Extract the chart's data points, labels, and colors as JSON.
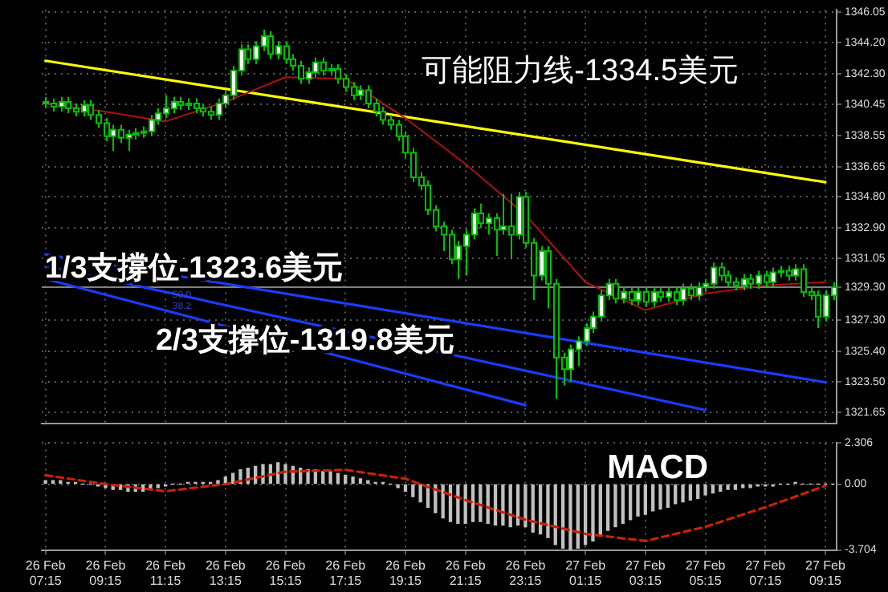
{
  "chart_data": [
    {
      "type": "candlestick",
      "annotations": [
        "可能阻力线-1334.5美元",
        "1/3支撐位-1323.6美元",
        "2/3支撐位-1319.8美元",
        "50.0",
        "38.2"
      ],
      "categories": [
        "26 Feb 07:15",
        null,
        null,
        null,
        null,
        null,
        null,
        null,
        "26 Feb 09:15",
        null,
        null,
        null,
        null,
        null,
        null,
        null,
        "26 Feb 11:15",
        null,
        null,
        null,
        null,
        null,
        null,
        null,
        "26 Feb 13:15",
        null,
        null,
        null,
        null,
        null,
        null,
        null,
        "26 Feb 15:15",
        null,
        null,
        null,
        null,
        null,
        null,
        null,
        "26 Feb 17:15",
        null,
        null,
        null,
        null,
        null,
        null,
        null,
        "26 Feb 19:15",
        null,
        null,
        null,
        null,
        null,
        null,
        null,
        "26 Feb 21:15",
        null,
        null,
        null,
        null,
        null,
        null,
        null,
        "26 Feb 23:15",
        null,
        null,
        null,
        null,
        null,
        null,
        null,
        "27 Feb 01:15",
        null,
        null,
        null,
        null,
        null,
        null,
        null,
        "27 Feb 03:15",
        null,
        null,
        null,
        null,
        null,
        null,
        null,
        "27 Feb 05:15",
        null,
        null,
        null,
        null,
        null,
        null,
        null,
        "27 Feb 07:15",
        null,
        null,
        null,
        null,
        null,
        null,
        null,
        "27 Feb 09:15",
        null
      ],
      "ohlc": [
        [
          1340.6,
          1340.9,
          1340.2,
          1340.5
        ],
        [
          1340.5,
          1340.8,
          1340.0,
          1340.3
        ],
        [
          1340.3,
          1340.9,
          1340.0,
          1340.6
        ],
        [
          1340.6,
          1340.9,
          1339.9,
          1340.2
        ],
        [
          1340.2,
          1340.5,
          1339.7,
          1340.0
        ],
        [
          1340.0,
          1340.7,
          1339.7,
          1340.4
        ],
        [
          1340.4,
          1340.7,
          1339.5,
          1339.8
        ],
        [
          1339.8,
          1340.1,
          1339.0,
          1339.3
        ],
        [
          1339.3,
          1339.6,
          1338.2,
          1338.5
        ],
        [
          1338.5,
          1339.2,
          1337.6,
          1338.9
        ],
        [
          1338.9,
          1339.2,
          1338.1,
          1338.4
        ],
        [
          1338.4,
          1338.9,
          1337.6,
          1338.6
        ],
        [
          1338.6,
          1339.0,
          1338.3,
          1338.7
        ],
        [
          1338.7,
          1339.1,
          1338.4,
          1338.8
        ],
        [
          1338.8,
          1339.8,
          1338.5,
          1339.5
        ],
        [
          1339.5,
          1340.2,
          1339.2,
          1339.9
        ],
        [
          1339.9,
          1341.0,
          1339.6,
          1340.2
        ],
        [
          1340.2,
          1340.9,
          1339.9,
          1340.6
        ],
        [
          1340.6,
          1340.9,
          1340.1,
          1340.4
        ],
        [
          1340.4,
          1340.8,
          1340.1,
          1340.5
        ],
        [
          1340.5,
          1340.8,
          1339.9,
          1340.2
        ],
        [
          1340.2,
          1340.5,
          1339.7,
          1340.0
        ],
        [
          1340.0,
          1340.3,
          1339.5,
          1339.8
        ],
        [
          1339.8,
          1340.8,
          1339.5,
          1340.5
        ],
        [
          1340.5,
          1341.3,
          1340.2,
          1341.0
        ],
        [
          1341.0,
          1342.8,
          1340.7,
          1342.5
        ],
        [
          1342.5,
          1344.1,
          1342.2,
          1343.8
        ],
        [
          1343.8,
          1344.1,
          1342.9,
          1343.2
        ],
        [
          1343.2,
          1344.3,
          1342.9,
          1344.0
        ],
        [
          1344.0,
          1345.0,
          1343.7,
          1344.6
        ],
        [
          1344.6,
          1344.9,
          1343.2,
          1343.5
        ],
        [
          1343.5,
          1344.3,
          1343.2,
          1344.0
        ],
        [
          1344.0,
          1344.3,
          1342.9,
          1343.2
        ],
        [
          1343.2,
          1343.5,
          1342.5,
          1342.8
        ],
        [
          1342.8,
          1343.1,
          1341.7,
          1342.0
        ],
        [
          1342.0,
          1342.7,
          1341.7,
          1342.4
        ],
        [
          1342.4,
          1343.3,
          1342.1,
          1343.0
        ],
        [
          1343.0,
          1343.3,
          1342.2,
          1342.5
        ],
        [
          1342.5,
          1342.9,
          1342.2,
          1342.6
        ],
        [
          1342.6,
          1342.9,
          1341.7,
          1342.0
        ],
        [
          1342.0,
          1342.3,
          1341.2,
          1341.5
        ],
        [
          1341.5,
          1341.8,
          1340.7,
          1341.0
        ],
        [
          1341.0,
          1341.6,
          1340.7,
          1341.3
        ],
        [
          1341.3,
          1341.6,
          1340.2,
          1340.5
        ],
        [
          1340.5,
          1340.8,
          1339.7,
          1340.0
        ],
        [
          1340.0,
          1340.3,
          1339.2,
          1339.5
        ],
        [
          1339.5,
          1339.8,
          1338.9,
          1339.2
        ],
        [
          1339.2,
          1339.5,
          1338.2,
          1338.5
        ],
        [
          1338.5,
          1338.8,
          1337.2,
          1337.5
        ],
        [
          1337.5,
          1337.8,
          1335.7,
          1336.0
        ],
        [
          1336.0,
          1336.3,
          1335.2,
          1335.5
        ],
        [
          1335.5,
          1335.8,
          1333.7,
          1334.0
        ],
        [
          1334.0,
          1334.3,
          1332.7,
          1333.0
        ],
        [
          1333.0,
          1333.3,
          1331.5,
          1332.5
        ],
        [
          1332.5,
          1332.8,
          1330.7,
          1331.0
        ],
        [
          1331.0,
          1332.1,
          1329.8,
          1331.8
        ],
        [
          1331.8,
          1332.8,
          1330.0,
          1332.5
        ],
        [
          1332.5,
          1334.1,
          1332.2,
          1333.8
        ],
        [
          1333.8,
          1334.4,
          1332.9,
          1333.2
        ],
        [
          1333.2,
          1333.8,
          1332.5,
          1333.5
        ],
        [
          1333.5,
          1333.8,
          1331.2,
          1332.8
        ],
        [
          1332.8,
          1335.0,
          1332.5,
          1333.0
        ],
        [
          1333.0,
          1335.0,
          1331.0,
          1332.5
        ],
        [
          1332.5,
          1335.1,
          1332.2,
          1334.8
        ],
        [
          1334.8,
          1335.1,
          1331.7,
          1332.0
        ],
        [
          1332.0,
          1332.3,
          1328.5,
          1330.0
        ],
        [
          1330.0,
          1331.8,
          1329.7,
          1331.5
        ],
        [
          1331.5,
          1331.8,
          1328.0,
          1329.5
        ],
        [
          1329.5,
          1329.8,
          1322.5,
          1325.0
        ],
        [
          1325.0,
          1325.3,
          1323.3,
          1324.3
        ],
        [
          1324.3,
          1325.8,
          1323.5,
          1325.5
        ],
        [
          1325.5,
          1326.3,
          1324.5,
          1326.0
        ],
        [
          1326.0,
          1327.1,
          1325.7,
          1326.8
        ],
        [
          1326.8,
          1327.8,
          1326.5,
          1327.5
        ],
        [
          1327.5,
          1329.1,
          1327.2,
          1328.8
        ],
        [
          1328.8,
          1329.8,
          1328.5,
          1329.5
        ],
        [
          1329.5,
          1329.8,
          1328.3,
          1328.6
        ],
        [
          1328.6,
          1329.3,
          1328.3,
          1329.0
        ],
        [
          1329.0,
          1329.3,
          1328.2,
          1328.5
        ],
        [
          1328.5,
          1329.3,
          1328.2,
          1329.0
        ],
        [
          1329.0,
          1329.3,
          1328.1,
          1328.4
        ],
        [
          1328.4,
          1329.3,
          1328.1,
          1329.0
        ],
        [
          1329.0,
          1329.3,
          1328.4,
          1328.7
        ],
        [
          1328.7,
          1329.3,
          1328.4,
          1329.0
        ],
        [
          1329.0,
          1329.3,
          1328.2,
          1328.5
        ],
        [
          1328.5,
          1329.5,
          1328.2,
          1329.2
        ],
        [
          1329.2,
          1329.5,
          1328.5,
          1328.8
        ],
        [
          1328.8,
          1329.6,
          1328.5,
          1329.3
        ],
        [
          1329.3,
          1329.8,
          1329.0,
          1329.5
        ],
        [
          1329.5,
          1330.8,
          1329.2,
          1330.5
        ],
        [
          1330.5,
          1330.8,
          1329.7,
          1330.0
        ],
        [
          1330.0,
          1330.3,
          1329.3,
          1329.6
        ],
        [
          1329.6,
          1329.9,
          1329.1,
          1329.4
        ],
        [
          1329.4,
          1330.1,
          1329.1,
          1329.8
        ],
        [
          1329.8,
          1330.1,
          1329.2,
          1329.5
        ],
        [
          1329.5,
          1330.3,
          1329.2,
          1330.0
        ],
        [
          1330.0,
          1330.3,
          1329.3,
          1329.6
        ],
        [
          1329.6,
          1330.5,
          1329.3,
          1330.2
        ],
        [
          1330.2,
          1330.6,
          1329.9,
          1330.3
        ],
        [
          1330.3,
          1330.6,
          1329.7,
          1330.0
        ],
        [
          1330.0,
          1330.7,
          1329.7,
          1330.4
        ],
        [
          1330.4,
          1330.7,
          1328.7,
          1329.0
        ],
        [
          1329.0,
          1329.3,
          1328.5,
          1328.8
        ],
        [
          1328.8,
          1329.1,
          1326.8,
          1327.5
        ],
        [
          1327.5,
          1329.1,
          1327.2,
          1328.8
        ],
        [
          1328.8,
          1329.6,
          1328.5,
          1329.3
        ]
      ],
      "series": [
        {
          "type": "line",
          "color": "#b01010",
          "x": [
            "26 Feb 07:15",
            "26 Feb 09:15",
            "26 Feb 11:15",
            "26 Feb 13:15",
            "26 Feb 15:15",
            "26 Feb 17:15",
            "26 Feb 19:15",
            "26 Feb 21:15",
            "26 Feb 23:15",
            "27 Feb 01:15",
            "27 Feb 03:15",
            "27 Feb 05:15",
            "27 Feb 07:15",
            "27 Feb 09:15"
          ],
          "values": [
            1340.5,
            1340.0,
            1339.4,
            1340.6,
            1342.1,
            1342.0,
            1339.6,
            1336.8,
            1333.7,
            1329.6,
            1327.9,
            1328.9,
            1329.4,
            1329.6
          ]
        },
        {
          "type": "line",
          "color": "#ffff00",
          "x": [
            "26 Feb 07:15",
            "27 Feb 09:15"
          ],
          "values": [
            1343.1,
            1335.7
          ]
        },
        {
          "type": "line",
          "color": "#1a3cff",
          "x": [
            "26 Feb 07:15",
            "27 Feb 09:15"
          ],
          "values": [
            1331.3,
            1323.5
          ]
        },
        {
          "type": "line",
          "color": "#1a3cff",
          "x": [
            "26 Feb 07:15",
            "27 Feb 05:15"
          ],
          "values": [
            1330.6,
            1321.8
          ]
        },
        {
          "type": "line",
          "color": "#1a3cff",
          "x": [
            "26 Feb 07:15",
            "26 Feb 23:15"
          ],
          "values": [
            1329.8,
            1322.1
          ]
        }
      ],
      "ref_lines": [
        {
          "axis": "y",
          "value": 1329.3,
          "color": "#808080"
        }
      ],
      "ylim": [
        1321.0,
        1346.2
      ],
      "yticks": [
        1346.05,
        {
          "value": 1344.2,
          "label": "1344.20"
        },
        {
          "value": 1342.3,
          "label": "1342.30"
        },
        1340.45,
        1338.55,
        1336.65,
        {
          "value": 1334.8,
          "label": "1334.80"
        },
        {
          "value": 1332.9,
          "label": "1332.90"
        },
        1331.05,
        {
          "value": 1329.3,
          "label": "1329.30"
        },
        {
          "value": 1327.3,
          "label": "1327.30"
        },
        {
          "value": 1325.4,
          "label": "1325.40"
        },
        {
          "value": 1323.5,
          "label": "1323.50"
        },
        1321.65
      ],
      "grid": true,
      "tick_labels": "y"
    },
    {
      "type": "bar",
      "annotations": [
        "MACD"
      ],
      "categories": [
        "26 Feb 07:15",
        null,
        null,
        null,
        null,
        null,
        null,
        null,
        "26 Feb 09:15",
        null,
        null,
        null,
        null,
        null,
        null,
        null,
        "26 Feb 11:15",
        null,
        null,
        null,
        null,
        null,
        null,
        null,
        "26 Feb 13:15",
        null,
        null,
        null,
        null,
        null,
        null,
        null,
        "26 Feb 15:15",
        null,
        null,
        null,
        null,
        null,
        null,
        null,
        "26 Feb 17:15",
        null,
        null,
        null,
        null,
        null,
        null,
        null,
        "26 Feb 19:15",
        null,
        null,
        null,
        null,
        null,
        null,
        null,
        "26 Feb 21:15",
        null,
        null,
        null,
        null,
        null,
        null,
        null,
        "26 Feb 23:15",
        null,
        null,
        null,
        null,
        null,
        null,
        null,
        "27 Feb 01:15",
        null,
        null,
        null,
        null,
        null,
        null,
        null,
        "27 Feb 03:15",
        null,
        null,
        null,
        null,
        null,
        null,
        null,
        "27 Feb 05:15",
        null,
        null,
        null,
        null,
        null,
        null,
        null,
        "27 Feb 07:15",
        null,
        null,
        null,
        null,
        null,
        null,
        null,
        "27 Feb 09:15",
        null
      ],
      "series": [
        {
          "type": "bar",
          "color": "#c0c0c0",
          "values": [
            0.2,
            0.2,
            0.2,
            0.1,
            0.1,
            0.0,
            0.0,
            -0.1,
            -0.2,
            -0.3,
            -0.3,
            -0.4,
            -0.4,
            -0.4,
            -0.3,
            -0.2,
            -0.1,
            0.0,
            0.0,
            0.1,
            0.1,
            0.1,
            0.1,
            0.2,
            0.4,
            0.6,
            0.8,
            0.9,
            1.0,
            1.1,
            1.1,
            1.2,
            1.1,
            1.0,
            0.9,
            0.8,
            0.8,
            0.7,
            0.7,
            0.6,
            0.5,
            0.4,
            0.3,
            0.2,
            0.1,
            0.1,
            0.0,
            -0.2,
            -0.4,
            -0.7,
            -1.0,
            -1.3,
            -1.6,
            -1.9,
            -2.1,
            -2.2,
            -2.2,
            -2.1,
            -2.1,
            -2.2,
            -2.3,
            -2.3,
            -2.4,
            -2.3,
            -2.4,
            -2.7,
            -2.8,
            -3.0,
            -3.4,
            -3.6,
            -3.7,
            -3.6,
            -3.4,
            -3.2,
            -2.9,
            -2.6,
            -2.4,
            -2.2,
            -2.0,
            -1.8,
            -1.7,
            -1.5,
            -1.4,
            -1.3,
            -1.1,
            -1.0,
            -0.9,
            -0.8,
            -0.6,
            -0.5,
            -0.4,
            -0.3,
            -0.3,
            -0.2,
            -0.2,
            -0.1,
            -0.1,
            -0.1,
            0.0,
            0.0,
            0.1,
            0.0,
            0.0,
            0.0,
            0.0,
            0.0
          ]
        },
        {
          "type": "line",
          "color": "#cc2200",
          "line_style": "dashed",
          "x": [
            "26 Feb 07:15",
            "26 Feb 09:15",
            "26 Feb 11:15",
            "26 Feb 13:15",
            "26 Feb 15:15",
            "26 Feb 17:15",
            "26 Feb 19:15",
            "26 Feb 21:15",
            "26 Feb 23:15",
            "27 Feb 01:15",
            "27 Feb 03:15",
            "27 Feb 05:15",
            "27 Feb 07:15",
            "27 Feb 09:15"
          ],
          "values": [
            0.5,
            0.0,
            -0.4,
            0.0,
            0.7,
            0.8,
            0.3,
            -0.9,
            -2.0,
            -2.8,
            -3.2,
            -2.4,
            -1.3,
            -0.1
          ]
        }
      ],
      "ylim": [
        -3.704,
        2.306
      ],
      "yticks": [
        2.306,
        {
          "value": 0,
          "label": "0.00"
        },
        -3.704
      ],
      "grid": true
    }
  ]
}
